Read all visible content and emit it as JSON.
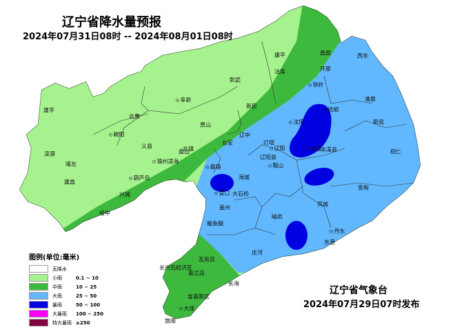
{
  "header": {
    "title": "辽宁省降水量预报",
    "period": "2024年07月31日08时 -- 2024年08月01日08时"
  },
  "footer": {
    "issuer": "辽宁省气象台",
    "issued": "2024年07月29日07时发布"
  },
  "legend": {
    "title": "图例(单位:毫米)",
    "items": [
      {
        "name": "无降水",
        "range": "",
        "color": "#ffffff"
      },
      {
        "name": "小雨",
        "range": "0.1 ~ 10",
        "color": "#a6f28f"
      },
      {
        "name": "中雨",
        "range": "10 ~ 25",
        "color": "#3dba3d"
      },
      {
        "name": "大雨",
        "range": "25 ~ 50",
        "color": "#61b8ff"
      },
      {
        "name": "暴雨",
        "range": "50 ~ 100",
        "color": "#0000e1"
      },
      {
        "name": "大暴雨",
        "range": "100 ~ 250",
        "color": "#fa00fa"
      },
      {
        "name": "特大暴雨",
        "range": "≥250",
        "color": "#800040"
      }
    ]
  },
  "places": [
    {
      "name": "康平",
      "city": false
    },
    {
      "name": "昌图",
      "city": false
    },
    {
      "name": "西丰",
      "city": false
    },
    {
      "name": "法库",
      "city": false
    },
    {
      "name": "开原",
      "city": false
    },
    {
      "name": "彰武",
      "city": false
    },
    {
      "name": "铁岭",
      "city": true
    },
    {
      "name": "阜新",
      "city": true
    },
    {
      "name": "建平",
      "city": false
    },
    {
      "name": "北票",
      "city": false
    },
    {
      "name": "清原",
      "city": false
    },
    {
      "name": "新民",
      "city": false
    },
    {
      "name": "抚顺",
      "city": true
    },
    {
      "name": "朝阳",
      "city": true
    },
    {
      "name": "义县",
      "city": false
    },
    {
      "name": "北镇",
      "city": false
    },
    {
      "name": "黑山",
      "city": false
    },
    {
      "name": "沈阳",
      "city": true
    },
    {
      "name": "新宾",
      "city": false
    },
    {
      "name": "辽中",
      "city": false
    },
    {
      "name": "凌源",
      "city": false
    },
    {
      "name": "喀左",
      "city": false
    },
    {
      "name": "台安",
      "city": false
    },
    {
      "name": "灯塔",
      "city": false
    },
    {
      "name": "盘山",
      "city": false
    },
    {
      "name": "锦州凌海",
      "city": true
    },
    {
      "name": "辽阳",
      "city": true
    },
    {
      "name": "本溪",
      "city": true
    },
    {
      "name": "本溪县",
      "city": false
    },
    {
      "name": "桓仁",
      "city": false
    },
    {
      "name": "辽阳县",
      "city": false
    },
    {
      "name": "盘锦",
      "city": true
    },
    {
      "name": "鞍山",
      "city": true
    },
    {
      "name": "葫芦岛",
      "city": true
    },
    {
      "name": "建昌",
      "city": false
    },
    {
      "name": "海城",
      "city": false
    },
    {
      "name": "宽甸",
      "city": false
    },
    {
      "name": "兴城",
      "city": false
    },
    {
      "name": "营口",
      "city": true
    },
    {
      "name": "大石桥",
      "city": false
    },
    {
      "name": "盖州",
      "city": false
    },
    {
      "name": "绥中",
      "city": false
    },
    {
      "name": "凤城",
      "city": false
    },
    {
      "name": "鲅鱼圈",
      "city": false
    },
    {
      "name": "岫岩",
      "city": false
    },
    {
      "name": "丹东",
      "city": true
    },
    {
      "name": "东港",
      "city": false
    },
    {
      "name": "庄河",
      "city": false
    },
    {
      "name": "瓦房店",
      "city": false
    },
    {
      "name": "长兴岛经济区",
      "city": false
    },
    {
      "name": "普兰店",
      "city": false
    },
    {
      "name": "长海",
      "city": false
    },
    {
      "name": "金普新区",
      "city": false
    },
    {
      "name": "大连",
      "city": true
    },
    {
      "name": "旅顺",
      "city": false
    }
  ]
}
